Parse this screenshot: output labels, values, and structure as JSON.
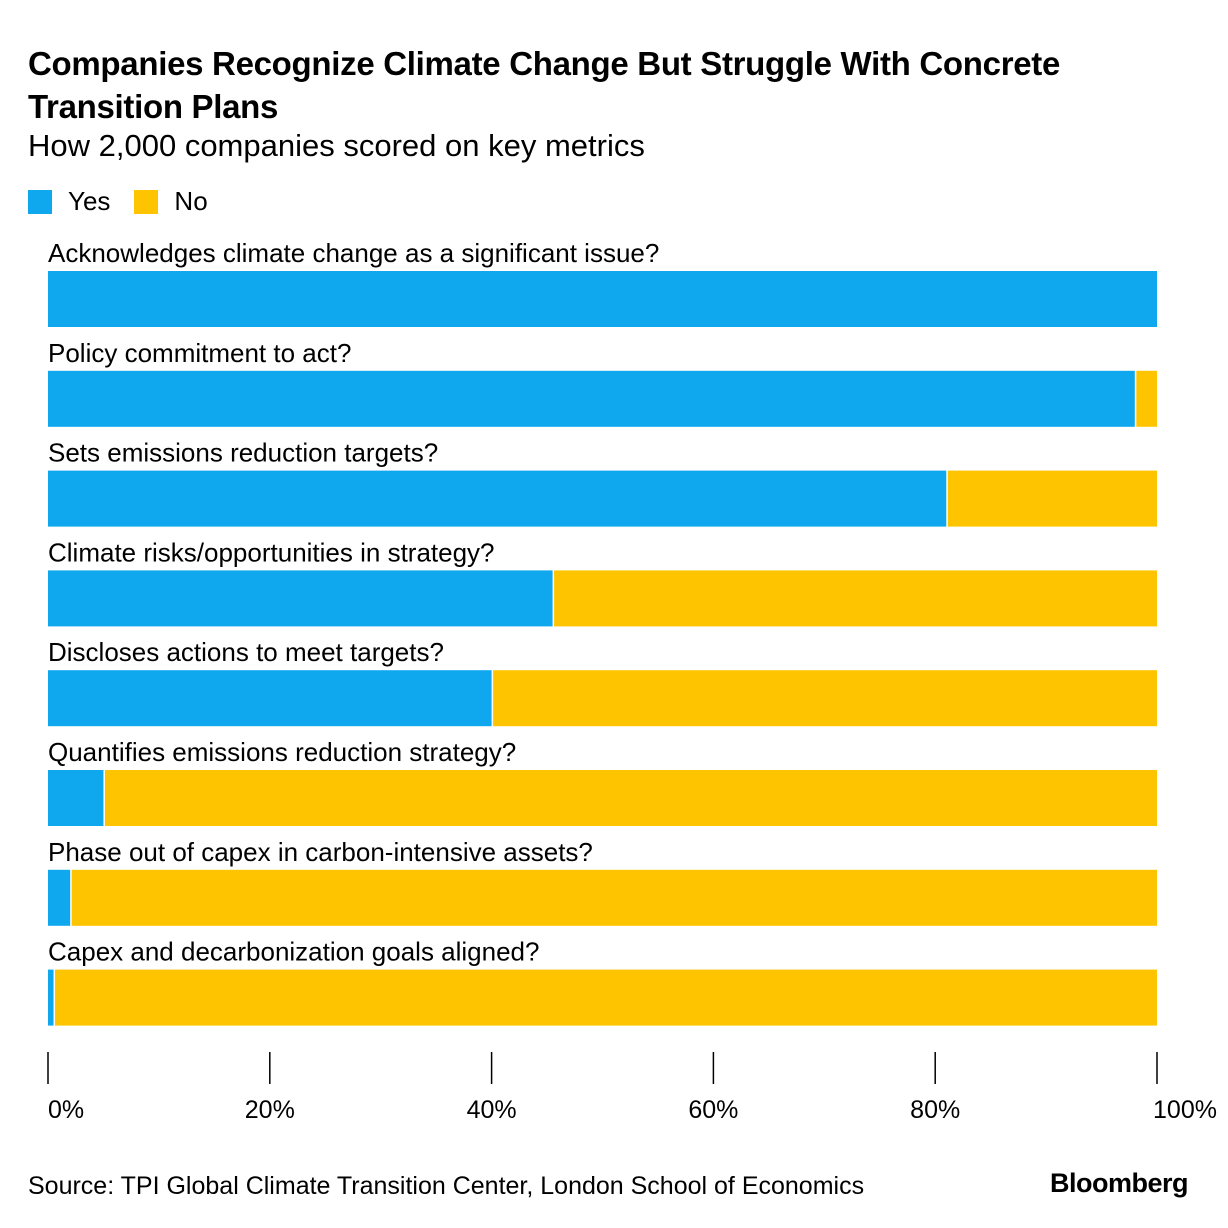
{
  "chart_data": {
    "type": "bar",
    "orientation": "horizontal",
    "stacked": true,
    "title": "Companies Recognize Climate Change But Struggle With Concrete Transition Plans",
    "subtitle": "How 2,000 companies scored on key metrics",
    "categories": [
      "Acknowledges climate change as a significant issue?",
      "Policy commitment to act?",
      "Sets emissions reduction targets?",
      "Climate risks/opportunities in strategy?",
      "Discloses actions to meet targets?",
      "Quantifies emissions reduction strategy?",
      "Phase out of capex in carbon-intensive assets?",
      "Capex and decarbonization goals aligned?"
    ],
    "series": [
      {
        "name": "Yes",
        "color": "#0fa8ee",
        "values": [
          100,
          98,
          81,
          45.5,
          40,
          5,
          2,
          0.5
        ]
      },
      {
        "name": "No",
        "color": "#ffc400",
        "values": [
          0,
          2,
          19,
          54.5,
          60,
          95,
          98,
          99.5
        ]
      }
    ],
    "xlim": [
      0,
      100
    ],
    "xticks": [
      "0%",
      "20%",
      "40%",
      "60%",
      "80%",
      "100%"
    ],
    "xtick_values": [
      0,
      20,
      40,
      60,
      80,
      100
    ],
    "legend_position": "top-left",
    "grid": false
  },
  "source": "Source: TPI Global Climate Transition Center, London School of Economics",
  "brand": "Bloomberg"
}
